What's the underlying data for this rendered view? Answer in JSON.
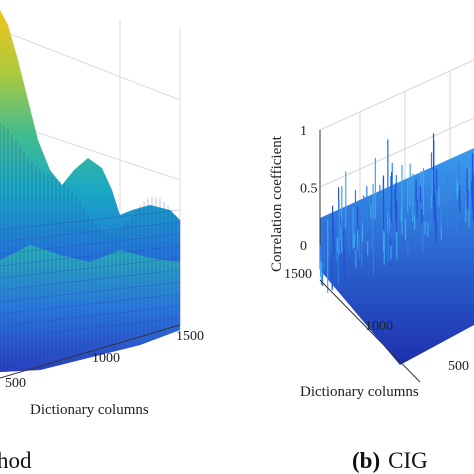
{
  "chart_data": [
    {
      "type": "surface",
      "panel_caption": "hod",
      "xlabel": "Dictionary columns",
      "x_ticks": [
        "500",
        "1000",
        "1500"
      ],
      "colormap": [
        "#1f2fb8",
        "#2a58e0",
        "#1e8fd8",
        "#17b3b8",
        "#4cc08a",
        "#a6c846",
        "#e8c22a"
      ],
      "surface_shape": "large smooth peak on the left rising to yellow, decaying into rolling blue-green ridges toward the right",
      "grid": true
    },
    {
      "type": "surface",
      "panel_caption_bold": "(b)",
      "panel_caption": "CIG",
      "zlabel": "Correlation coefficient",
      "xlabel": "Dictionary columns",
      "z_ticks": [
        "0",
        "0.5",
        "1"
      ],
      "zlim": [
        0,
        1
      ],
      "y_ticks": [
        "1500",
        "1000",
        "500"
      ],
      "x_ticks": [
        "500"
      ],
      "colormap": [
        "#1c2cb0",
        "#2452d8",
        "#2f7de8",
        "#3aa8f0"
      ],
      "surface_shape": "dense noisy flat surface with low correlation values and many thin spikes",
      "grid": true
    }
  ]
}
